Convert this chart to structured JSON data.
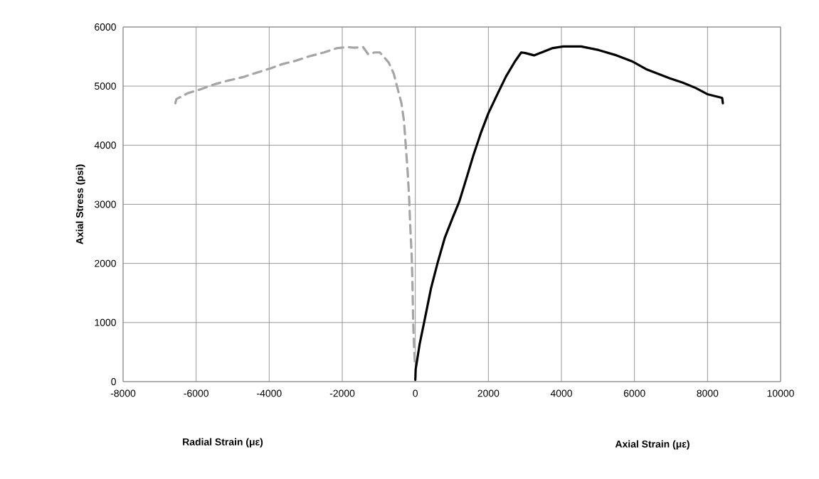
{
  "chart_data": {
    "type": "line",
    "xlabel": "Radial Strain (με)",
    "ylabel": "Axial Stress (psi)",
    "annotations": [
      "Axial Strain (με)"
    ],
    "xlim": [
      -8000,
      10000
    ],
    "xticks": [
      -8000,
      -6000,
      -4000,
      -2000,
      0,
      2000,
      4000,
      6000,
      8000,
      10000
    ],
    "ylim": [
      0,
      6000
    ],
    "yticks": [
      0,
      1000,
      2000,
      3000,
      4000,
      5000,
      6000
    ],
    "grid": true,
    "marker": "none",
    "series": [
      {
        "color": "#a5a5a5",
        "line_style": "dashed",
        "x": [
          -6570,
          -6540,
          -6230,
          -5910,
          -5500,
          -5150,
          -4730,
          -4380,
          -3970,
          -3650,
          -3270,
          -2920,
          -2500,
          -2160,
          -1880,
          -1670,
          -1430,
          -1290,
          -1110,
          -970,
          -730,
          -590,
          -490,
          -380,
          -310,
          -260,
          -210,
          -170,
          -140,
          -100,
          -80,
          -60,
          -40,
          -10
        ],
        "values": [
          4710,
          4780,
          4880,
          4940,
          5030,
          5090,
          5150,
          5220,
          5300,
          5370,
          5430,
          5500,
          5570,
          5640,
          5660,
          5650,
          5660,
          5540,
          5570,
          5570,
          5400,
          5210,
          4970,
          4710,
          4410,
          3980,
          3550,
          3120,
          2650,
          2140,
          1710,
          1060,
          640,
          290
        ]
      },
      {
        "color": "#000000",
        "line_style": "solid",
        "x": [
          0,
          10,
          120,
          260,
          430,
          610,
          810,
          1020,
          1200,
          1370,
          1580,
          1790,
          2000,
          2260,
          2480,
          2730,
          2900,
          3010,
          3250,
          3420,
          3740,
          4050,
          4540,
          5020,
          5510,
          5930,
          6340,
          6970,
          7320,
          7670,
          8010,
          8400,
          8420
        ],
        "values": [
          30,
          210,
          640,
          1060,
          1580,
          2010,
          2440,
          2770,
          3040,
          3380,
          3810,
          4200,
          4540,
          4880,
          5160,
          5420,
          5570,
          5560,
          5520,
          5560,
          5640,
          5670,
          5670,
          5610,
          5520,
          5420,
          5280,
          5130,
          5060,
          4970,
          4860,
          4800,
          4710
        ]
      }
    ]
  }
}
